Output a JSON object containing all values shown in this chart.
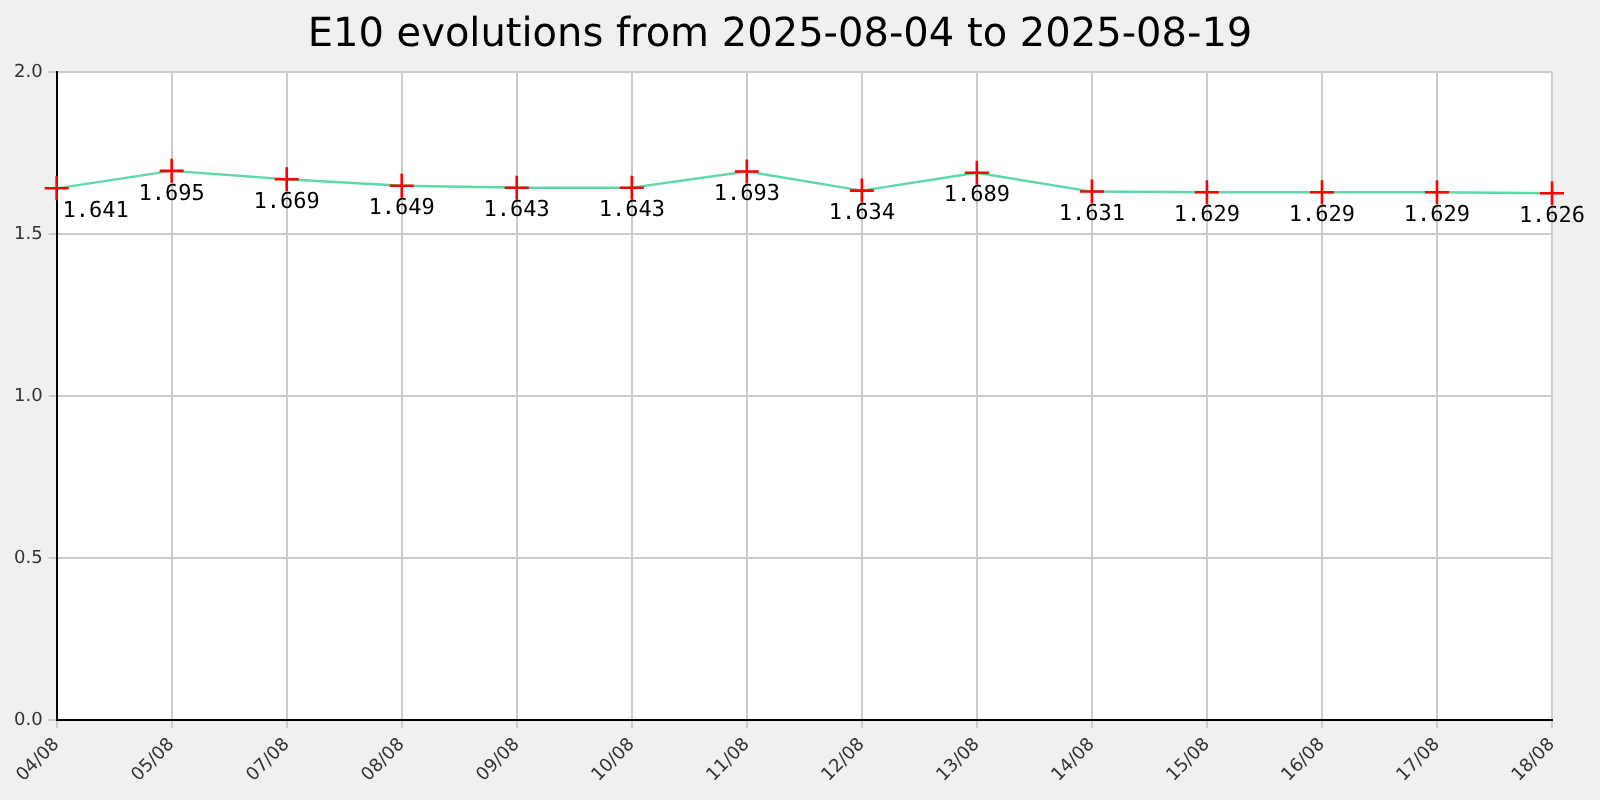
{
  "chart_data": {
    "type": "line",
    "title": "E10 evolutions from 2025-08-04 to 2025-08-19",
    "categories": [
      "04/08",
      "05/08",
      "07/08",
      "08/08",
      "09/08",
      "10/08",
      "11/08",
      "12/08",
      "13/08",
      "14/08",
      "15/08",
      "16/08",
      "17/08",
      "18/08"
    ],
    "series": [
      {
        "color": "#5fd8a8",
        "values": [
          1.641,
          1.695,
          1.669,
          1.649,
          1.643,
          1.643,
          1.693,
          1.634,
          1.689,
          1.631,
          1.629,
          1.629,
          1.629,
          1.626
        ]
      }
    ],
    "ylim": [
      0,
      2
    ],
    "yticks": [
      {
        "value": 0,
        "label": "0.0"
      },
      {
        "value": 0.5,
        "label": "0.5"
      },
      {
        "value": 1,
        "label": "1.0"
      },
      {
        "value": 1.5,
        "label": "1.5"
      },
      {
        "value": 2,
        "label": "2.0"
      }
    ],
    "grid": true,
    "marker": "cross",
    "line_style": "solid",
    "data_labels": true,
    "legend": false
  }
}
